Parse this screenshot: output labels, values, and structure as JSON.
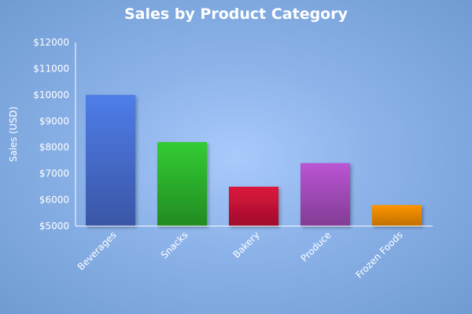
{
  "chart_data": {
    "type": "bar",
    "title": "Sales by Product Category",
    "xlabel": "",
    "ylabel": "Sales (USD)",
    "ylim": [
      5000,
      12000
    ],
    "yticks": [
      "$5000",
      "$6000",
      "$7000",
      "$8000",
      "$9000",
      "$10000",
      "$11000",
      "$12000"
    ],
    "categories": [
      "Beverages",
      "Snacks",
      "Bakery",
      "Produce",
      "Frozen Foods"
    ],
    "values": [
      10000,
      8200,
      6500,
      7400,
      5800
    ],
    "colors": [
      [
        "#4e7de8",
        "#3a56a6"
      ],
      [
        "#33cc33",
        "#228b22"
      ],
      [
        "#dc143c",
        "#a00f2c"
      ],
      [
        "#ba55d3",
        "#823c94"
      ],
      [
        "#ff9500",
        "#c07000"
      ]
    ],
    "grid": false,
    "legend": "none"
  }
}
